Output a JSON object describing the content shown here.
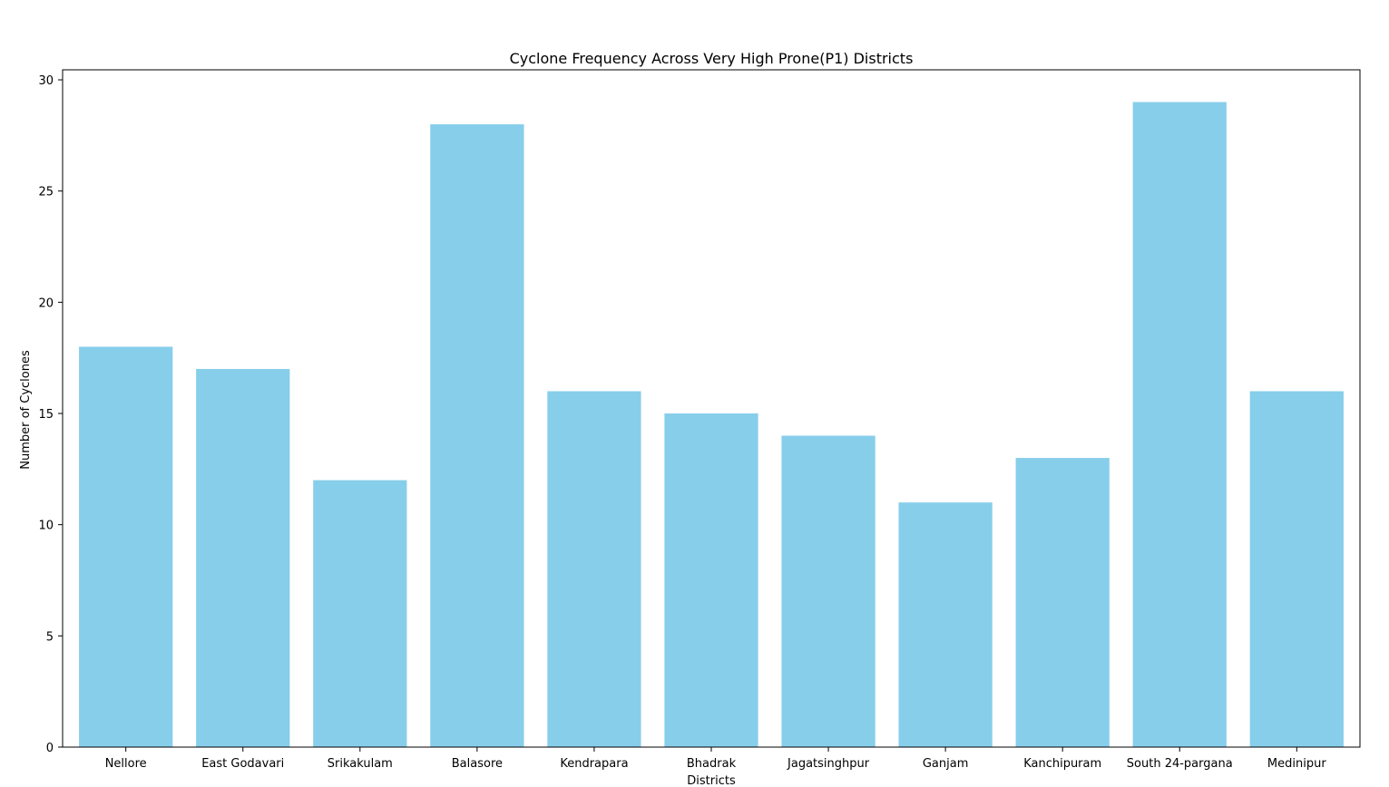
{
  "chart_data": {
    "type": "bar",
    "title": "Cyclone Frequency Across Very High Prone(P1) Districts",
    "xlabel": "Districts",
    "ylabel": "Number of Cyclones",
    "categories": [
      "Nellore",
      "East Godavari",
      "Srikakulam",
      "Balasore",
      "Kendrapara",
      "Bhadrak",
      "Jagatsinghpur",
      "Ganjam",
      "Kanchipuram",
      "South 24-pargana",
      "Medinipur"
    ],
    "values": [
      18,
      17,
      12,
      28,
      16,
      15,
      14,
      11,
      13,
      29,
      16
    ],
    "ylim": [
      0,
      30.45
    ],
    "yticks": [
      0,
      5,
      10,
      15,
      20,
      25,
      30
    ],
    "bar_color": "#87ceeb",
    "grid": false,
    "legend": "none"
  }
}
